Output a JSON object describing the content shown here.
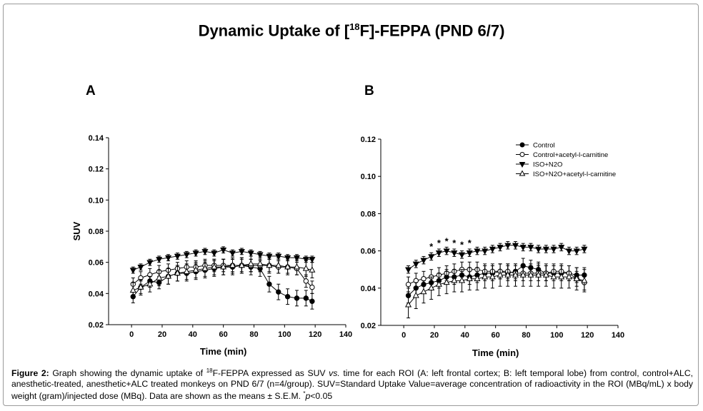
{
  "title": {
    "prefix": "Dynamic Uptake of [",
    "sup": "18",
    "suffix": "F]-FEPPA (PND 6/7)"
  },
  "caption": {
    "label": "Figure 2:",
    "text1": " Graph showing the dynamic uptake of ",
    "sup": "18",
    "text2": "F-FEPPA expressed as SUV ",
    "vs": "vs.",
    "text3": " time for each ROI (A: left frontal cortex; B: left temporal lobe) from control, control+ALC, anesthetic-treated, anesthetic+ALC treated monkeys on PND 6/7 (n=4/group). SUV=Standard Uptake Value=average concentration of radioactivity in the ROI (MBq/mL) x body weight (gram)/injected dose (MBq). Data are shown as the means ± S.E.M. ",
    "star": "*",
    "p": "p",
    "tail": "<0.05"
  },
  "chart_data": [
    {
      "panel": "A",
      "type": "line",
      "xlabel": "Time (min)",
      "ylabel": "SUV",
      "xlim": [
        -15,
        140
      ],
      "ylim": [
        0.02,
        0.14
      ],
      "xticks": [
        0,
        20,
        40,
        60,
        80,
        100,
        120,
        140
      ],
      "yticks": [
        0.02,
        0.04,
        0.06,
        0.08,
        0.1,
        0.12,
        0.14
      ],
      "tick_labels_x": [
        "0",
        "20",
        "40",
        "60",
        "80",
        "100",
        "120",
        "140"
      ],
      "tick_labels_y": [
        "0.02",
        "0.04",
        "0.06",
        "0.08",
        "0.10",
        "0.12",
        "0.14"
      ],
      "legend": null,
      "x": [
        1,
        6,
        12,
        18,
        24,
        30,
        36,
        42,
        48,
        54,
        60,
        66,
        72,
        78,
        84,
        90,
        96,
        102,
        108,
        114,
        118
      ],
      "series": [
        {
          "name": "Control",
          "marker": "circle-filled",
          "values": [
            0.038,
            0.044,
            0.048,
            0.047,
            0.051,
            0.053,
            0.053,
            0.054,
            0.055,
            0.056,
            0.057,
            0.057,
            0.058,
            0.057,
            0.056,
            0.046,
            0.041,
            0.038,
            0.037,
            0.037,
            0.035
          ],
          "err": [
            0.004,
            0.004,
            0.004,
            0.004,
            0.005,
            0.005,
            0.005,
            0.005,
            0.005,
            0.005,
            0.005,
            0.005,
            0.005,
            0.005,
            0.005,
            0.005,
            0.005,
            0.005,
            0.005,
            0.005,
            0.005
          ]
        },
        {
          "name": "Control+acetyl-l-carnitine",
          "marker": "circle-open",
          "values": [
            0.046,
            0.05,
            0.052,
            0.054,
            0.055,
            0.056,
            0.057,
            0.057,
            0.058,
            0.058,
            0.058,
            0.058,
            0.058,
            0.058,
            0.058,
            0.058,
            0.057,
            0.057,
            0.056,
            0.048,
            0.044
          ],
          "err": [
            0.004,
            0.004,
            0.004,
            0.004,
            0.004,
            0.004,
            0.004,
            0.004,
            0.004,
            0.004,
            0.004,
            0.004,
            0.004,
            0.004,
            0.004,
            0.004,
            0.004,
            0.004,
            0.004,
            0.004,
            0.004
          ]
        },
        {
          "name": "ISO+N2O",
          "marker": "triangle-down-filled",
          "values": [
            0.055,
            0.057,
            0.06,
            0.062,
            0.063,
            0.064,
            0.065,
            0.066,
            0.067,
            0.066,
            0.068,
            0.066,
            0.067,
            0.066,
            0.065,
            0.064,
            0.064,
            0.063,
            0.063,
            0.062,
            0.062
          ],
          "err": [
            0.002,
            0.002,
            0.002,
            0.002,
            0.002,
            0.002,
            0.002,
            0.002,
            0.002,
            0.002,
            0.002,
            0.002,
            0.002,
            0.002,
            0.002,
            0.002,
            0.002,
            0.002,
            0.002,
            0.002,
            0.002
          ]
        },
        {
          "name": "ISO+N2O+acetyl-l-carnitine",
          "marker": "triangle-up-open",
          "values": [
            0.042,
            0.044,
            0.046,
            0.05,
            0.051,
            0.053,
            0.054,
            0.055,
            0.056,
            0.057,
            0.057,
            0.058,
            0.058,
            0.059,
            0.059,
            0.058,
            0.058,
            0.057,
            0.057,
            0.056,
            0.055
          ],
          "err": [
            0.005,
            0.005,
            0.005,
            0.005,
            0.005,
            0.005,
            0.005,
            0.005,
            0.005,
            0.005,
            0.005,
            0.005,
            0.005,
            0.005,
            0.005,
            0.005,
            0.005,
            0.005,
            0.005,
            0.005,
            0.005
          ]
        }
      ],
      "significance": []
    },
    {
      "panel": "B",
      "type": "line",
      "xlabel": "Time (min)",
      "ylabel": "",
      "xlim": [
        -15,
        140
      ],
      "ylim": [
        0.02,
        0.12
      ],
      "xticks": [
        0,
        20,
        40,
        60,
        80,
        100,
        120,
        140
      ],
      "yticks": [
        0.02,
        0.04,
        0.06,
        0.08,
        0.1,
        0.12
      ],
      "tick_labels_x": [
        "0",
        "20",
        "40",
        "60",
        "80",
        "100",
        "120",
        "140"
      ],
      "tick_labels_y": [
        "0.02",
        "0.04",
        "0.06",
        "0.08",
        "0.10",
        "0.12"
      ],
      "legend": "top-right",
      "x": [
        3,
        8,
        13,
        18,
        23,
        28,
        33,
        38,
        43,
        48,
        53,
        58,
        63,
        68,
        73,
        78,
        83,
        88,
        93,
        98,
        103,
        108,
        113,
        118
      ],
      "series": [
        {
          "name": "Control",
          "marker": "circle-filled",
          "values": [
            0.036,
            0.04,
            0.042,
            0.043,
            0.044,
            0.046,
            0.046,
            0.047,
            0.046,
            0.047,
            0.048,
            0.048,
            0.049,
            0.048,
            0.049,
            0.052,
            0.051,
            0.05,
            0.048,
            0.048,
            0.048,
            0.048,
            0.047,
            0.047
          ],
          "err": [
            0.004,
            0.004,
            0.004,
            0.004,
            0.004,
            0.004,
            0.004,
            0.004,
            0.004,
            0.004,
            0.004,
            0.004,
            0.004,
            0.004,
            0.004,
            0.004,
            0.004,
            0.004,
            0.004,
            0.004,
            0.004,
            0.004,
            0.004,
            0.004
          ]
        },
        {
          "name": "Control+acetyl-l-carnitine",
          "marker": "circle-open",
          "values": [
            0.042,
            0.044,
            0.045,
            0.046,
            0.047,
            0.048,
            0.049,
            0.05,
            0.05,
            0.05,
            0.049,
            0.049,
            0.049,
            0.049,
            0.048,
            0.048,
            0.048,
            0.048,
            0.048,
            0.049,
            0.049,
            0.048,
            0.045,
            0.043
          ],
          "err": [
            0.004,
            0.004,
            0.004,
            0.004,
            0.004,
            0.004,
            0.004,
            0.004,
            0.004,
            0.004,
            0.004,
            0.004,
            0.004,
            0.004,
            0.004,
            0.004,
            0.004,
            0.004,
            0.004,
            0.004,
            0.004,
            0.004,
            0.004,
            0.004
          ]
        },
        {
          "name": "ISO+N2O",
          "marker": "triangle-down-filled",
          "values": [
            0.05,
            0.053,
            0.055,
            0.057,
            0.059,
            0.06,
            0.059,
            0.058,
            0.059,
            0.06,
            0.06,
            0.061,
            0.062,
            0.063,
            0.063,
            0.062,
            0.062,
            0.061,
            0.061,
            0.061,
            0.062,
            0.06,
            0.06,
            0.061
          ],
          "err": [
            0.002,
            0.002,
            0.002,
            0.002,
            0.002,
            0.002,
            0.002,
            0.002,
            0.002,
            0.002,
            0.002,
            0.002,
            0.002,
            0.002,
            0.002,
            0.002,
            0.002,
            0.002,
            0.002,
            0.002,
            0.002,
            0.002,
            0.002,
            0.002
          ]
        },
        {
          "name": "ISO+N2O+acetyl-l-carnitine",
          "marker": "triangle-up-open",
          "values": [
            0.031,
            0.036,
            0.038,
            0.04,
            0.042,
            0.043,
            0.044,
            0.044,
            0.045,
            0.045,
            0.046,
            0.046,
            0.047,
            0.047,
            0.047,
            0.047,
            0.047,
            0.047,
            0.047,
            0.046,
            0.046,
            0.046,
            0.045,
            0.044
          ],
          "err": [
            0.007,
            0.007,
            0.006,
            0.006,
            0.006,
            0.006,
            0.006,
            0.006,
            0.006,
            0.006,
            0.006,
            0.006,
            0.006,
            0.006,
            0.006,
            0.006,
            0.006,
            0.006,
            0.006,
            0.006,
            0.006,
            0.006,
            0.006,
            0.006
          ]
        }
      ],
      "significance": [
        {
          "x": 18,
          "label": "*"
        },
        {
          "x": 23,
          "label": "*"
        },
        {
          "x": 28,
          "label": "*"
        },
        {
          "x": 33,
          "label": "*"
        },
        {
          "x": 38,
          "label": "*"
        },
        {
          "x": 43,
          "label": "*"
        }
      ]
    }
  ]
}
